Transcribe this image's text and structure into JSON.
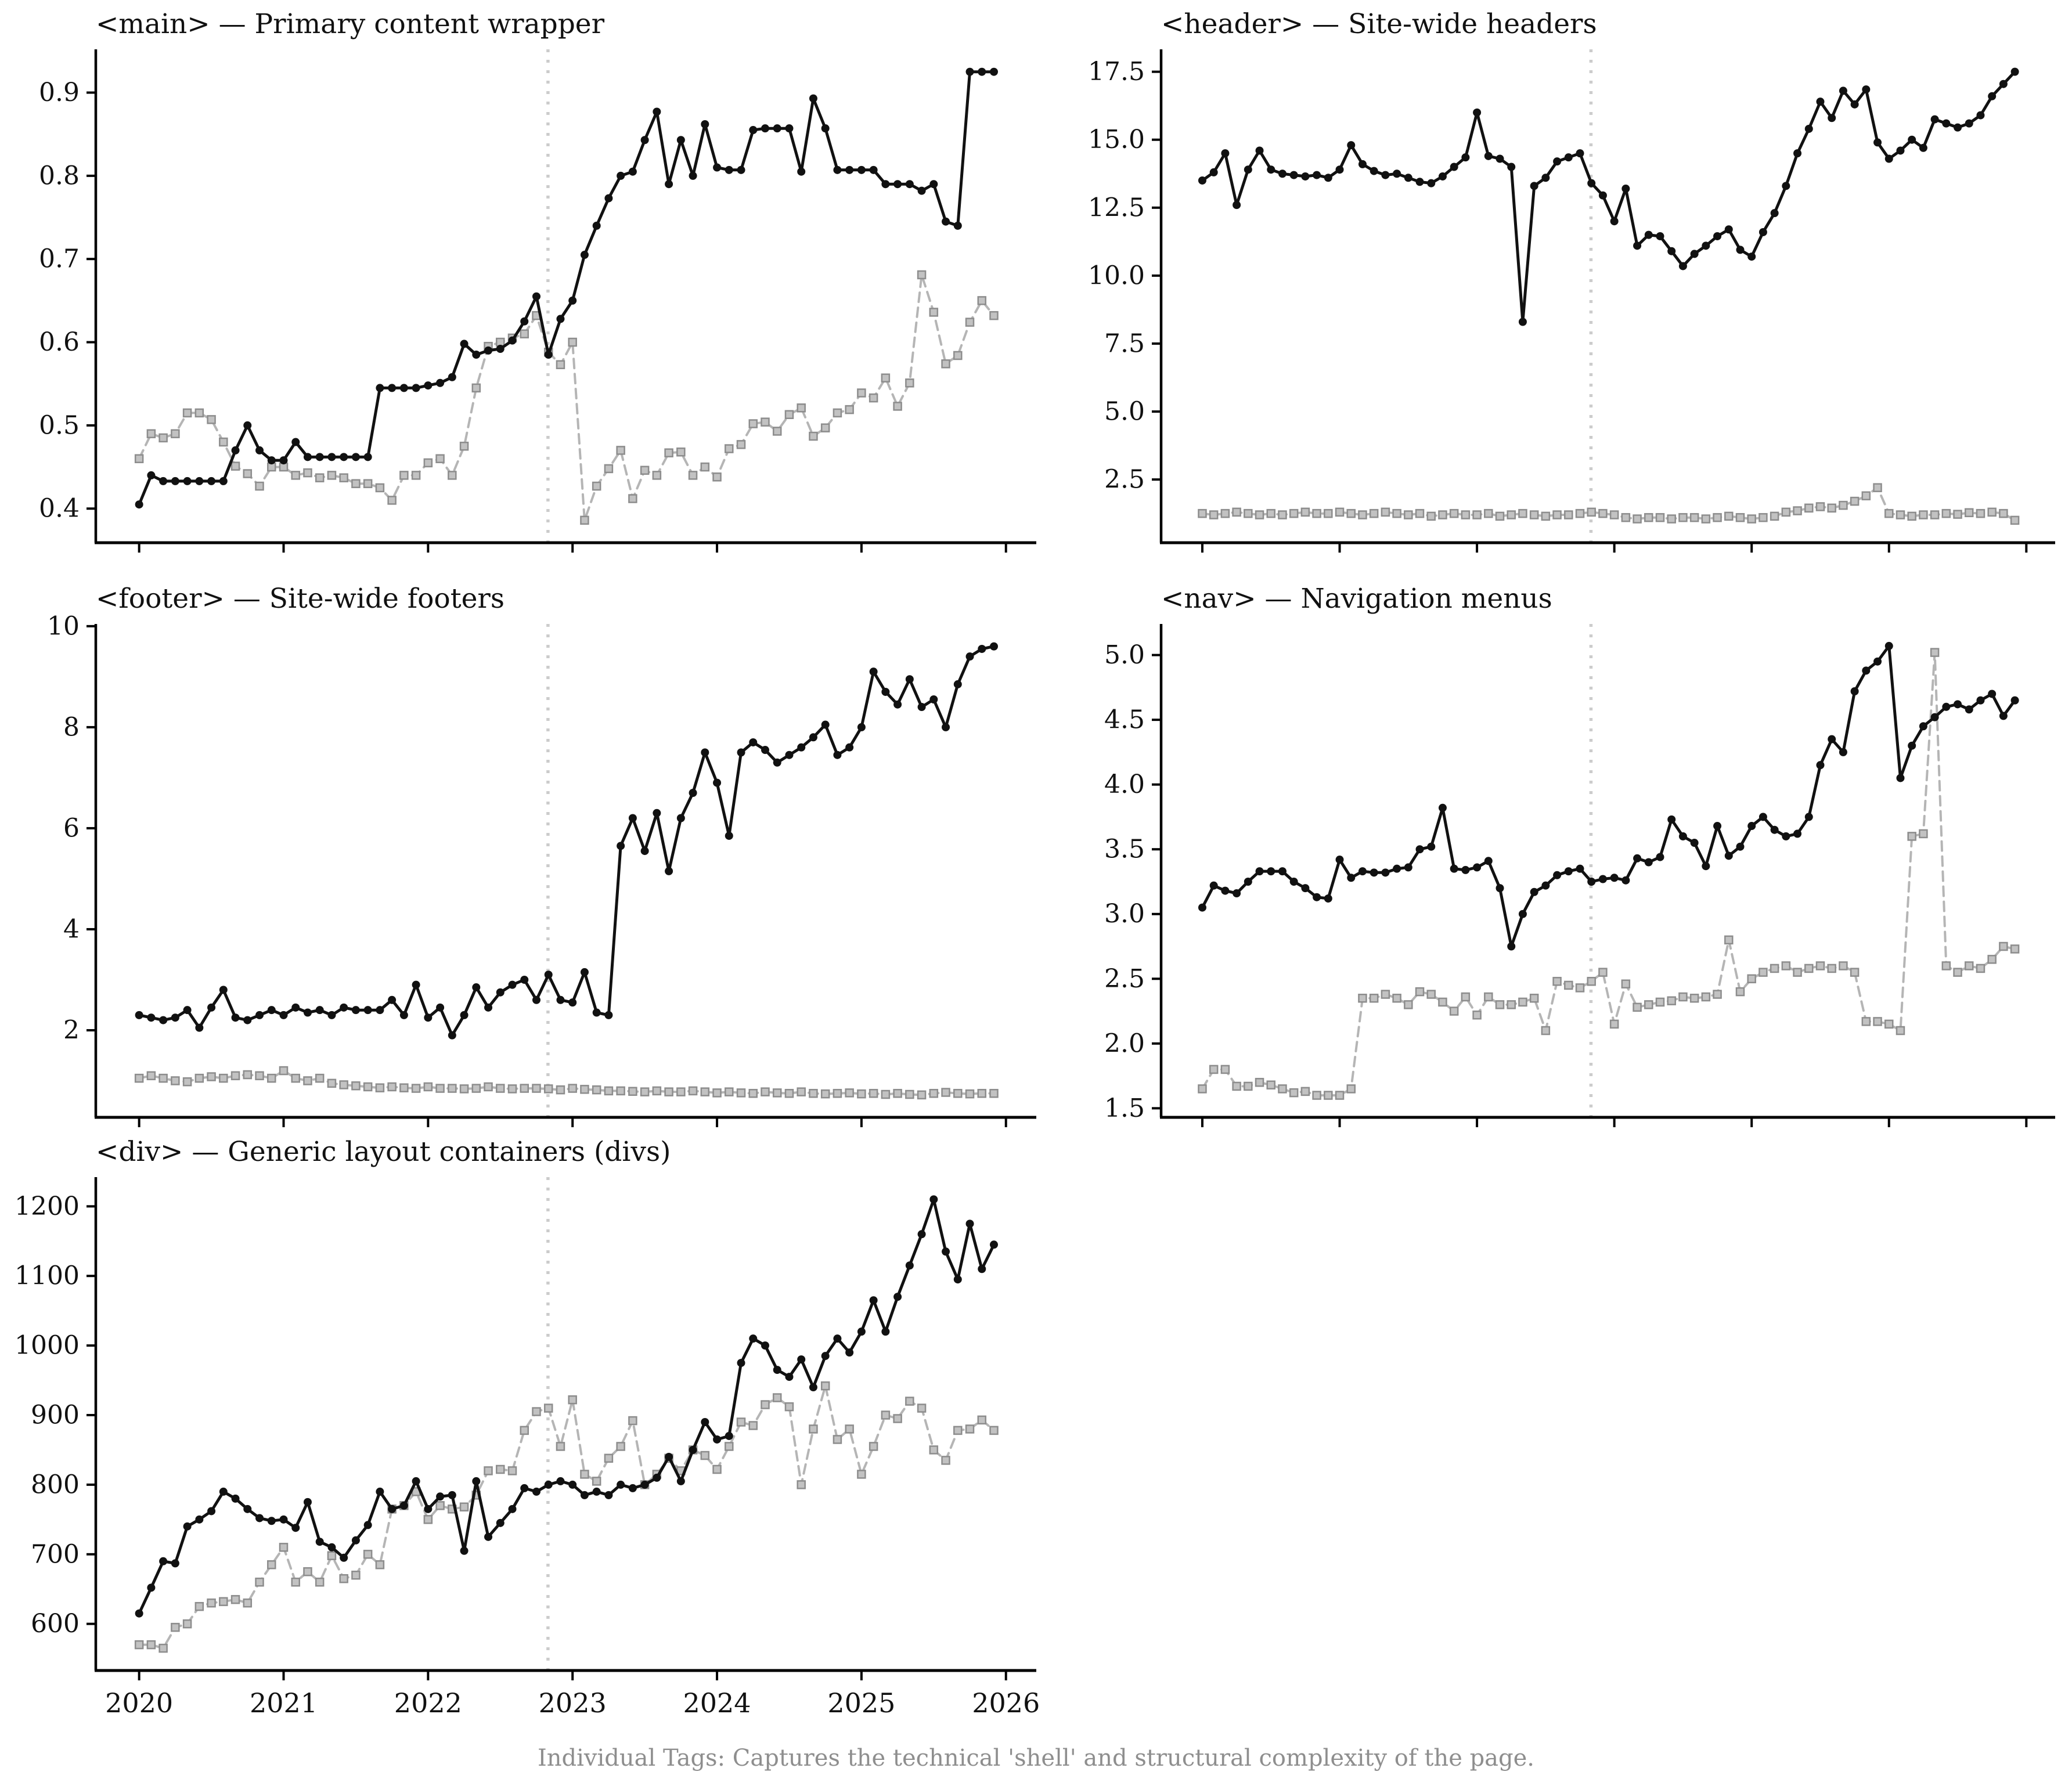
{
  "figure": {
    "caption": "Individual Tags: Captures the technical 'shell' and structural complexity of the page.",
    "background": "#ffffff",
    "solid_color": "#111111",
    "dashed_color": "#b5b5b5",
    "marker_edge_color": "#8d8d8d",
    "vline_color": "#cccccc"
  },
  "chart_data": [
    {
      "type": "line",
      "title": "<main> — Primary content wrapper",
      "x_start": 2020.0,
      "x_step": 0.083333,
      "xlim": [
        2019.7,
        2026.21
      ],
      "ylim": [
        0.359,
        0.952
      ],
      "xticks": [
        2020,
        2021,
        2022,
        2023,
        2024,
        2025,
        2026
      ],
      "show_x_labels": false,
      "yticks": [
        "0.4",
        "0.5",
        "0.6",
        "0.7",
        "0.8",
        "0.9"
      ],
      "vline_x": 2022.83,
      "legend": "none",
      "grid": false,
      "series": [
        {
          "name": "solid line",
          "style": "solid",
          "marker": "circle",
          "values": [
            0.405,
            0.44,
            0.433,
            0.433,
            0.433,
            0.433,
            0.433,
            0.433,
            0.47,
            0.5,
            0.47,
            0.458,
            0.458,
            0.48,
            0.462,
            0.462,
            0.462,
            0.462,
            0.462,
            0.462,
            0.545,
            0.545,
            0.545,
            0.545,
            0.548,
            0.551,
            0.558,
            0.598,
            0.585,
            0.59,
            0.592,
            0.602,
            0.625,
            0.655,
            0.585,
            0.628,
            0.65,
            0.705,
            0.74,
            0.773,
            0.8,
            0.805,
            0.843,
            0.877,
            0.79,
            0.843,
            0.8,
            0.862,
            0.81,
            0.807,
            0.807,
            0.855,
            0.857,
            0.857,
            0.857,
            0.805,
            0.893,
            0.857,
            0.807,
            0.807,
            0.807,
            0.807,
            0.79,
            0.79,
            0.79,
            0.782,
            0.79,
            0.745,
            0.74,
            0.925,
            0.925,
            0.925
          ]
        },
        {
          "name": "dashed line",
          "style": "dashed",
          "marker": "square",
          "values": [
            0.46,
            0.49,
            0.485,
            0.49,
            0.515,
            0.515,
            0.507,
            0.48,
            0.451,
            0.442,
            0.427,
            0.45,
            0.45,
            0.44,
            0.443,
            0.437,
            0.44,
            0.437,
            0.43,
            0.43,
            0.425,
            0.41,
            0.44,
            0.44,
            0.455,
            0.46,
            0.44,
            0.475,
            0.545,
            0.595,
            0.6,
            0.605,
            0.61,
            0.632,
            0.588,
            0.573,
            0.6,
            0.386,
            0.427,
            0.448,
            0.47,
            0.412,
            0.446,
            0.44,
            0.467,
            0.468,
            0.44,
            0.45,
            0.438,
            0.472,
            0.477,
            0.502,
            0.504,
            0.493,
            0.513,
            0.521,
            0.487,
            0.497,
            0.515,
            0.519,
            0.539,
            0.533,
            0.557,
            0.523,
            0.551,
            0.681,
            0.636,
            0.574,
            0.584,
            0.624,
            0.65,
            0.632
          ]
        }
      ]
    },
    {
      "type": "line",
      "title": "<header> — Site-wide headers",
      "x_start": 2020.0,
      "x_step": 0.083333,
      "xlim": [
        2019.7,
        2026.21
      ],
      "ylim": [
        0.175,
        18.325
      ],
      "xticks": [
        2020,
        2021,
        2022,
        2023,
        2024,
        2025,
        2026
      ],
      "show_x_labels": false,
      "yticks": [
        "2.5",
        "5.0",
        "7.5",
        "10.0",
        "12.5",
        "15.0",
        "17.5"
      ],
      "vline_x": 2022.83,
      "legend": "none",
      "grid": false,
      "series": [
        {
          "name": "solid line",
          "style": "solid",
          "marker": "circle",
          "values": [
            13.5,
            13.8,
            14.5,
            12.6,
            13.9,
            14.6,
            13.9,
            13.75,
            13.7,
            13.65,
            13.7,
            13.6,
            13.9,
            14.8,
            14.1,
            13.85,
            13.7,
            13.75,
            13.6,
            13.45,
            13.4,
            13.65,
            14.0,
            14.35,
            16.0,
            14.4,
            14.3,
            14.0,
            8.3,
            13.3,
            13.6,
            14.2,
            14.35,
            14.5,
            13.4,
            12.95,
            12.0,
            13.2,
            11.1,
            11.5,
            11.45,
            10.9,
            10.35,
            10.8,
            11.1,
            11.45,
            11.7,
            10.95,
            10.7,
            11.6,
            12.3,
            13.3,
            14.5,
            15.4,
            16.4,
            15.8,
            16.8,
            16.3,
            16.85,
            14.9,
            14.3,
            14.6,
            15.0,
            14.7,
            15.75,
            15.6,
            15.45,
            15.6,
            15.9,
            16.6,
            17.05,
            17.5
          ]
        },
        {
          "name": "dashed line",
          "style": "dashed",
          "marker": "square",
          "values": [
            1.25,
            1.2,
            1.25,
            1.3,
            1.25,
            1.2,
            1.25,
            1.2,
            1.25,
            1.3,
            1.25,
            1.25,
            1.3,
            1.25,
            1.2,
            1.25,
            1.3,
            1.25,
            1.2,
            1.25,
            1.15,
            1.2,
            1.25,
            1.2,
            1.2,
            1.25,
            1.15,
            1.2,
            1.25,
            1.2,
            1.15,
            1.2,
            1.2,
            1.25,
            1.3,
            1.25,
            1.2,
            1.1,
            1.05,
            1.1,
            1.1,
            1.05,
            1.1,
            1.1,
            1.05,
            1.1,
            1.15,
            1.1,
            1.05,
            1.1,
            1.15,
            1.3,
            1.35,
            1.45,
            1.5,
            1.45,
            1.55,
            1.7,
            1.9,
            2.2,
            1.25,
            1.2,
            1.15,
            1.2,
            1.2,
            1.25,
            1.22,
            1.28,
            1.25,
            1.3,
            1.25,
            1.0
          ]
        }
      ]
    },
    {
      "type": "line",
      "title": "<footer> — Site-wide footers",
      "x_start": 2020.0,
      "x_step": 0.083333,
      "xlim": [
        2019.7,
        2026.21
      ],
      "ylim": [
        0.276,
        10.044
      ],
      "xticks": [
        2020,
        2021,
        2022,
        2023,
        2024,
        2025,
        2026
      ],
      "show_x_labels": false,
      "yticks": [
        "2",
        "4",
        "6",
        "8",
        "10"
      ],
      "vline_x": 2022.83,
      "legend": "none",
      "grid": false,
      "series": [
        {
          "name": "solid line",
          "style": "solid",
          "marker": "circle",
          "values": [
            2.3,
            2.25,
            2.2,
            2.25,
            2.4,
            2.05,
            2.45,
            2.8,
            2.25,
            2.2,
            2.3,
            2.4,
            2.3,
            2.45,
            2.35,
            2.4,
            2.3,
            2.45,
            2.4,
            2.4,
            2.4,
            2.6,
            2.3,
            2.9,
            2.25,
            2.45,
            1.9,
            2.3,
            2.85,
            2.45,
            2.75,
            2.9,
            3.0,
            2.6,
            3.1,
            2.6,
            2.55,
            3.15,
            2.35,
            2.3,
            5.65,
            6.2,
            5.55,
            6.3,
            5.15,
            6.2,
            6.7,
            7.5,
            6.9,
            5.85,
            7.5,
            7.7,
            7.55,
            7.3,
            7.45,
            7.6,
            7.8,
            8.05,
            7.45,
            7.6,
            8.0,
            9.1,
            8.7,
            8.45,
            8.95,
            8.4,
            8.55,
            8.0,
            8.85,
            9.4,
            9.55,
            9.6
          ]
        },
        {
          "name": "dashed line",
          "style": "dashed",
          "marker": "square",
          "values": [
            1.05,
            1.1,
            1.05,
            1.0,
            0.98,
            1.05,
            1.08,
            1.05,
            1.1,
            1.12,
            1.1,
            1.05,
            1.2,
            1.05,
            1.0,
            1.05,
            0.95,
            0.92,
            0.9,
            0.88,
            0.86,
            0.88,
            0.86,
            0.85,
            0.88,
            0.85,
            0.85,
            0.84,
            0.85,
            0.88,
            0.85,
            0.84,
            0.85,
            0.85,
            0.84,
            0.82,
            0.85,
            0.83,
            0.82,
            0.8,
            0.8,
            0.79,
            0.78,
            0.8,
            0.78,
            0.78,
            0.8,
            0.78,
            0.76,
            0.78,
            0.76,
            0.75,
            0.78,
            0.76,
            0.75,
            0.78,
            0.75,
            0.74,
            0.75,
            0.76,
            0.74,
            0.75,
            0.73,
            0.75,
            0.73,
            0.72,
            0.75,
            0.77,
            0.75,
            0.74,
            0.75,
            0.75
          ]
        }
      ]
    },
    {
      "type": "line",
      "title": "<nav> — Navigation menus",
      "x_start": 2020.0,
      "x_step": 0.083333,
      "xlim": [
        2019.7,
        2026.21
      ],
      "ylim": [
        1.43,
        5.24
      ],
      "xticks": [
        2020,
        2021,
        2022,
        2023,
        2024,
        2025,
        2026
      ],
      "show_x_labels": false,
      "yticks": [
        "1.5",
        "2.0",
        "2.5",
        "3.0",
        "3.5",
        "4.0",
        "4.5",
        "5.0"
      ],
      "vline_x": 2022.83,
      "legend": "none",
      "grid": false,
      "series": [
        {
          "name": "solid line",
          "style": "solid",
          "marker": "circle",
          "values": [
            3.05,
            3.22,
            3.18,
            3.16,
            3.25,
            3.33,
            3.33,
            3.33,
            3.25,
            3.2,
            3.13,
            3.12,
            3.42,
            3.28,
            3.33,
            3.32,
            3.32,
            3.35,
            3.36,
            3.5,
            3.52,
            3.82,
            3.35,
            3.34,
            3.36,
            3.41,
            3.2,
            2.75,
            3.0,
            3.17,
            3.22,
            3.3,
            3.33,
            3.35,
            3.25,
            3.27,
            3.28,
            3.26,
            3.43,
            3.4,
            3.44,
            3.73,
            3.6,
            3.55,
            3.37,
            3.68,
            3.45,
            3.52,
            3.68,
            3.75,
            3.65,
            3.6,
            3.62,
            3.75,
            4.15,
            4.35,
            4.25,
            4.72,
            4.88,
            4.95,
            5.07,
            4.05,
            4.3,
            4.45,
            4.52,
            4.6,
            4.62,
            4.58,
            4.65,
            4.7,
            4.53,
            4.65
          ]
        },
        {
          "name": "dashed line",
          "style": "dashed",
          "marker": "square",
          "values": [
            1.65,
            1.8,
            1.8,
            1.67,
            1.67,
            1.7,
            1.68,
            1.65,
            1.62,
            1.63,
            1.6,
            1.6,
            1.6,
            1.65,
            2.35,
            2.35,
            2.38,
            2.35,
            2.3,
            2.4,
            2.38,
            2.32,
            2.25,
            2.36,
            2.22,
            2.36,
            2.3,
            2.3,
            2.32,
            2.35,
            2.1,
            2.48,
            2.45,
            2.43,
            2.48,
            2.55,
            2.15,
            2.46,
            2.28,
            2.3,
            2.32,
            2.33,
            2.36,
            2.35,
            2.36,
            2.38,
            2.8,
            2.4,
            2.5,
            2.55,
            2.58,
            2.6,
            2.55,
            2.58,
            2.6,
            2.58,
            2.6,
            2.55,
            2.17,
            2.17,
            2.15,
            2.1,
            3.6,
            3.62,
            5.02,
            2.6,
            2.55,
            2.6,
            2.58,
            2.65,
            2.75,
            2.73
          ]
        }
      ]
    },
    {
      "type": "line",
      "title": "<div> — Generic layout containers (divs)",
      "x_start": 2020.0,
      "x_step": 0.083333,
      "xlim": [
        2019.7,
        2026.21
      ],
      "ylim": [
        533,
        1242
      ],
      "xticks": [
        2020,
        2021,
        2022,
        2023,
        2024,
        2025,
        2026
      ],
      "show_x_labels": true,
      "yticks": [
        "600",
        "700",
        "800",
        "900",
        "1000",
        "1100",
        "1200"
      ],
      "vline_x": 2022.83,
      "legend": "none",
      "grid": false,
      "series": [
        {
          "name": "solid line",
          "style": "solid",
          "marker": "circle",
          "values": [
            615,
            652,
            690,
            687,
            740,
            750,
            762,
            790,
            780,
            765,
            752,
            748,
            750,
            738,
            775,
            718,
            710,
            695,
            720,
            742,
            790,
            765,
            770,
            805,
            765,
            783,
            785,
            705,
            805,
            725,
            745,
            765,
            795,
            790,
            800,
            805,
            800,
            785,
            790,
            785,
            800,
            795,
            800,
            810,
            840,
            805,
            850,
            890,
            865,
            870,
            975,
            1010,
            1000,
            965,
            955,
            980,
            940,
            985,
            1010,
            990,
            1020,
            1065,
            1020,
            1070,
            1115,
            1160,
            1210,
            1135,
            1095,
            1175,
            1110,
            1145
          ]
        },
        {
          "name": "dashed line",
          "style": "dashed",
          "marker": "square",
          "values": [
            570,
            570,
            565,
            595,
            600,
            625,
            630,
            632,
            635,
            630,
            660,
            685,
            710,
            660,
            675,
            660,
            698,
            665,
            670,
            700,
            685,
            765,
            770,
            790,
            750,
            770,
            765,
            768,
            785,
            820,
            822,
            820,
            878,
            905,
            910,
            855,
            922,
            815,
            805,
            838,
            855,
            892,
            800,
            815,
            838,
            820,
            850,
            842,
            822,
            855,
            890,
            885,
            915,
            925,
            912,
            800,
            880,
            942,
            865,
            880,
            815,
            855,
            900,
            895,
            920,
            910,
            850,
            835,
            878,
            880,
            893,
            878
          ]
        }
      ]
    }
  ]
}
